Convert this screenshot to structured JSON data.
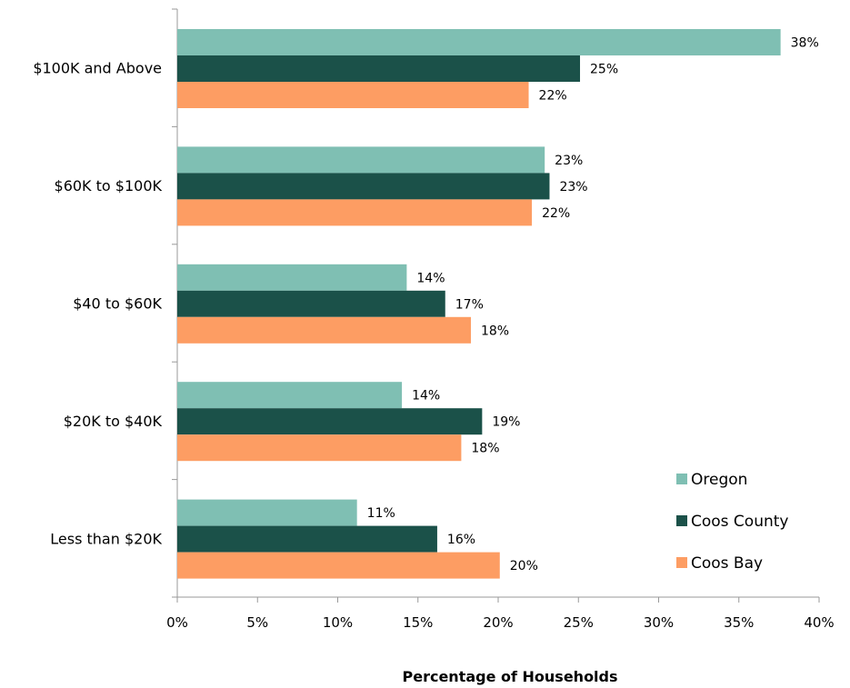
{
  "chart_data": {
    "type": "bar",
    "orientation": "horizontal",
    "title": "",
    "xlabel": "Percentage of Households",
    "ylabel": "",
    "categories": [
      "$100K and Above",
      "$60K to $100K",
      "$40 to $60K",
      "$20K to $40K",
      "Less than $20K"
    ],
    "series": [
      {
        "name": "Oregon",
        "color": "#7fbfb3",
        "values": [
          0.376,
          0.229,
          0.143,
          0.14,
          0.112
        ],
        "labels": [
          "38%",
          "23%",
          "14%",
          "14%",
          "11%"
        ]
      },
      {
        "name": "Coos County",
        "color": "#1b5149",
        "values": [
          0.251,
          0.232,
          0.167,
          0.19,
          0.162
        ],
        "labels": [
          "25%",
          "23%",
          "17%",
          "19%",
          "16%"
        ]
      },
      {
        "name": "Coos Bay",
        "color": "#fd9d63",
        "values": [
          0.219,
          0.221,
          0.183,
          0.177,
          0.201
        ],
        "labels": [
          "22%",
          "22%",
          "18%",
          "18%",
          "20%"
        ]
      }
    ],
    "xlim": [
      0,
      0.4
    ],
    "xticks": [
      0,
      0.05,
      0.1,
      0.15,
      0.2,
      0.25,
      0.3,
      0.35,
      0.4
    ],
    "xtick_labels": [
      "0%",
      "5%",
      "10%",
      "15%",
      "20%",
      "25%",
      "30%",
      "35%",
      "40%"
    ],
    "grid": false,
    "legend_position": "bottom-right"
  }
}
